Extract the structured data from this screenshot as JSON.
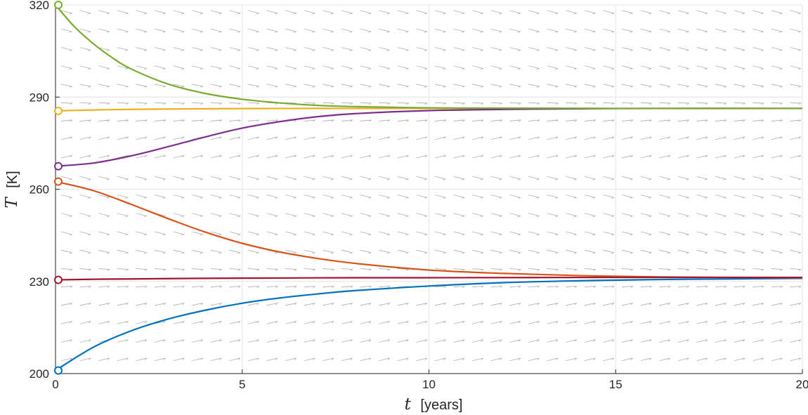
{
  "chart_data": {
    "type": "line",
    "title": "",
    "xlabel": {
      "symbol": "t",
      "unit": "[years]"
    },
    "ylabel": {
      "symbol": "T",
      "unit": "[K]"
    },
    "xlim": [
      0,
      20
    ],
    "ylim": [
      200,
      320
    ],
    "xticks": [
      0,
      5,
      10,
      15,
      20
    ],
    "yticks": [
      200,
      230,
      260,
      290,
      320
    ],
    "grid": true,
    "background_field": "direction-field",
    "series": [
      {
        "color": "#0072BD",
        "start_marker": "circle",
        "x": [
          0,
          1,
          2,
          3,
          4,
          5,
          6,
          7,
          8,
          10,
          12,
          14,
          16,
          18,
          20
        ],
        "y": [
          201,
          208.5,
          213.8,
          217.7,
          220.6,
          222.9,
          224.6,
          225.9,
          227,
          228.5,
          229.6,
          230.2,
          230.6,
          230.8,
          231
        ]
      },
      {
        "color": "#D95319",
        "start_marker": "circle",
        "x": [
          0,
          1,
          2,
          3,
          4,
          5,
          6,
          7,
          8,
          10,
          12,
          14,
          16,
          18,
          20
        ],
        "y": [
          262.5,
          259.6,
          255.2,
          250.5,
          246.1,
          242.4,
          239.6,
          237.5,
          235.9,
          233.7,
          232.6,
          231.9,
          231.5,
          231.3,
          231.2
        ]
      },
      {
        "color": "#EDB120",
        "start_marker": "circle",
        "x": [
          0,
          1,
          2,
          4,
          6,
          8,
          10,
          15,
          20
        ],
        "y": [
          285.5,
          285.8,
          286,
          286.2,
          286.3,
          286.3,
          286.3,
          286.3,
          286.3
        ]
      },
      {
        "color": "#7E2F8E",
        "start_marker": "circle",
        "x": [
          0,
          1,
          2,
          3,
          4,
          5,
          6,
          7,
          8,
          10,
          12,
          14,
          16,
          20
        ],
        "y": [
          267.5,
          268.5,
          270.8,
          273.8,
          277,
          279.9,
          282,
          283.6,
          284.6,
          285.6,
          286,
          286.2,
          286.3,
          286.3
        ]
      },
      {
        "color": "#77AC30",
        "start_marker": "circle",
        "x": [
          0,
          0.5,
          1,
          1.5,
          2,
          3,
          4,
          5,
          6,
          7,
          8,
          10,
          12,
          15,
          20
        ],
        "y": [
          320,
          313,
          307.5,
          303,
          299.3,
          294.3,
          291.2,
          289.3,
          288.1,
          287.3,
          286.9,
          286.5,
          286.4,
          286.3,
          286.3
        ]
      },
      {
        "color": "#A2142F",
        "start_marker": "circle",
        "x": [
          0,
          1,
          2,
          4,
          6,
          8,
          10,
          15,
          20
        ],
        "y": [
          230.5,
          230.7,
          230.8,
          231,
          231.1,
          231.2,
          231.2,
          231.3,
          231.3
        ]
      }
    ]
  }
}
